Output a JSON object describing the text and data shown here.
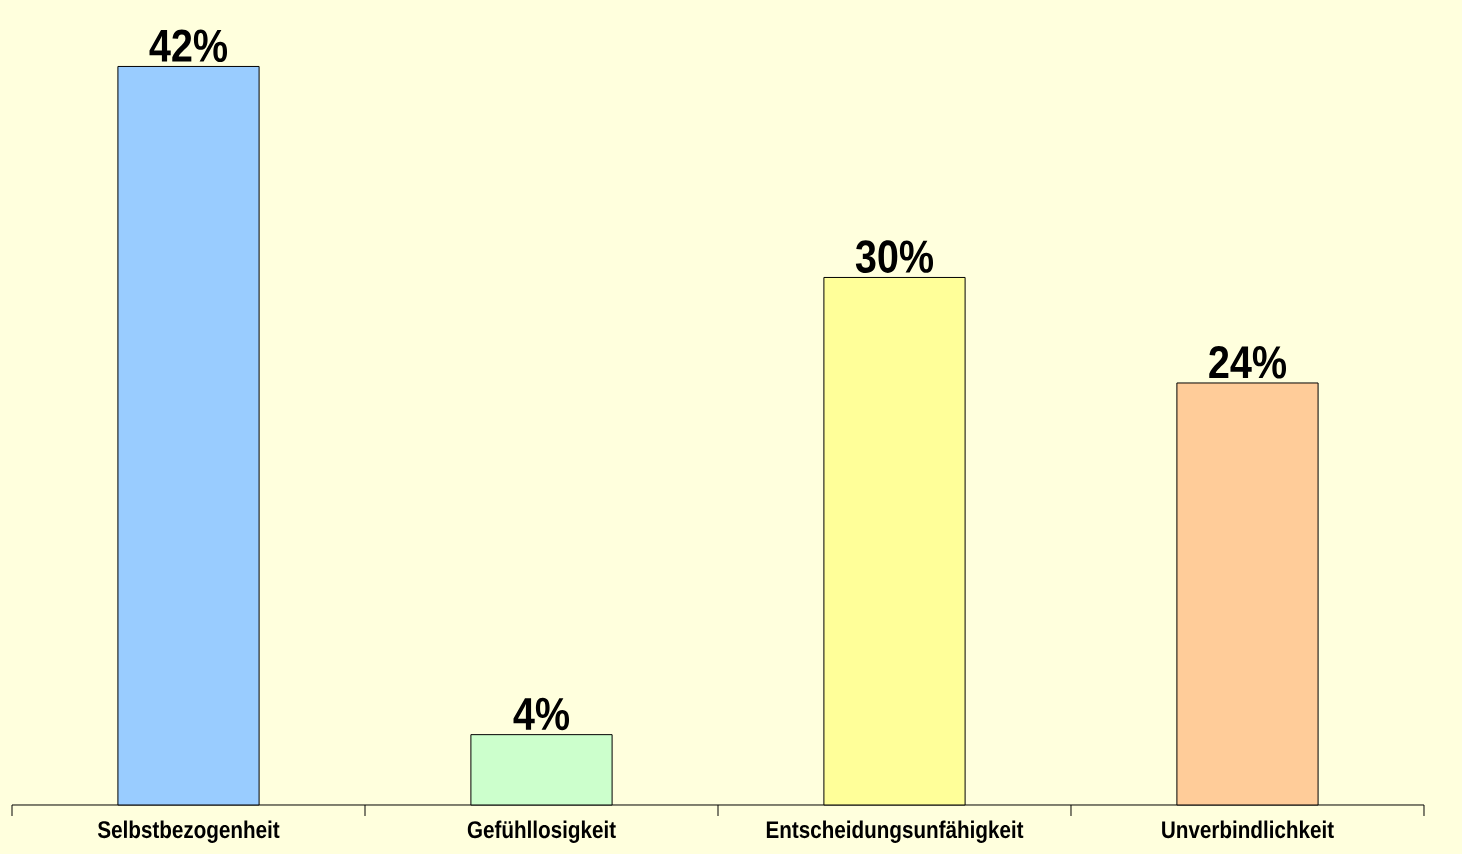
{
  "chart_data": {
    "type": "bar",
    "categories": [
      "Selbstbezogenheit",
      "Gefühllosigkeit",
      "Entscheidungsunfähigkeit",
      "Unverbindlichkeit"
    ],
    "values": [
      42,
      4,
      30,
      24
    ],
    "colors": [
      "#99ccff",
      "#ccffcc",
      "#ffff99",
      "#ffcc99"
    ],
    "value_labels": [
      "42%",
      "4%",
      "30%",
      "24%"
    ]
  }
}
